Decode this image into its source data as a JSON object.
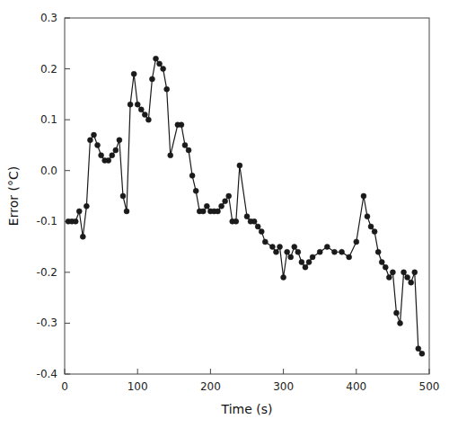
{
  "chart_data": {
    "type": "line",
    "x": [
      5,
      10,
      15,
      20,
      25,
      30,
      35,
      40,
      45,
      50,
      55,
      60,
      65,
      70,
      75,
      80,
      85,
      90,
      95,
      100,
      105,
      110,
      115,
      120,
      125,
      130,
      135,
      140,
      145,
      155,
      160,
      165,
      170,
      175,
      180,
      185,
      190,
      195,
      200,
      205,
      210,
      215,
      220,
      225,
      230,
      235,
      240,
      250,
      255,
      260,
      265,
      270,
      275,
      285,
      290,
      295,
      300,
      305,
      310,
      315,
      320,
      325,
      330,
      335,
      340,
      350,
      360,
      370,
      380,
      390,
      400,
      410,
      415,
      420,
      425,
      430,
      435,
      440,
      445,
      450,
      455,
      460,
      465,
      470,
      475,
      480,
      485,
      490
    ],
    "values": [
      -0.1,
      -0.1,
      -0.1,
      -0.08,
      -0.13,
      -0.07,
      0.06,
      0.07,
      0.05,
      0.03,
      0.02,
      0.02,
      0.03,
      0.04,
      0.06,
      -0.05,
      -0.08,
      0.13,
      0.19,
      0.13,
      0.12,
      0.11,
      0.1,
      0.18,
      0.22,
      0.21,
      0.2,
      0.16,
      0.03,
      0.09,
      0.09,
      0.05,
      0.04,
      -0.01,
      -0.04,
      -0.08,
      -0.08,
      -0.07,
      -0.08,
      -0.08,
      -0.08,
      -0.07,
      -0.06,
      -0.05,
      -0.1,
      -0.1,
      0.01,
      -0.09,
      -0.1,
      -0.1,
      -0.11,
      -0.12,
      -0.14,
      -0.15,
      -0.16,
      -0.15,
      -0.21,
      -0.16,
      -0.17,
      -0.15,
      -0.16,
      -0.18,
      -0.19,
      -0.18,
      -0.17,
      -0.16,
      -0.15,
      -0.16,
      -0.16,
      -0.17,
      -0.14,
      -0.05,
      -0.09,
      -0.11,
      -0.12,
      -0.16,
      -0.18,
      -0.19,
      -0.21,
      -0.2,
      -0.28,
      -0.3,
      -0.2,
      -0.21,
      -0.22,
      -0.2,
      -0.35,
      -0.36
    ],
    "xlim": [
      0,
      500
    ],
    "ylim": [
      -0.4,
      0.3
    ],
    "xticks": [
      0,
      100,
      200,
      300,
      400,
      500
    ],
    "yticks": [
      -0.4,
      -0.3,
      -0.2,
      -0.1,
      {
        "value": 0,
        "label": "0.0"
      },
      0.1,
      0.2,
      0.3
    ],
    "xlabel": "Time (s)",
    "ylabel": "Error (°C)",
    "color": "#1a1a1a",
    "marker": "circle",
    "grid": false
  }
}
